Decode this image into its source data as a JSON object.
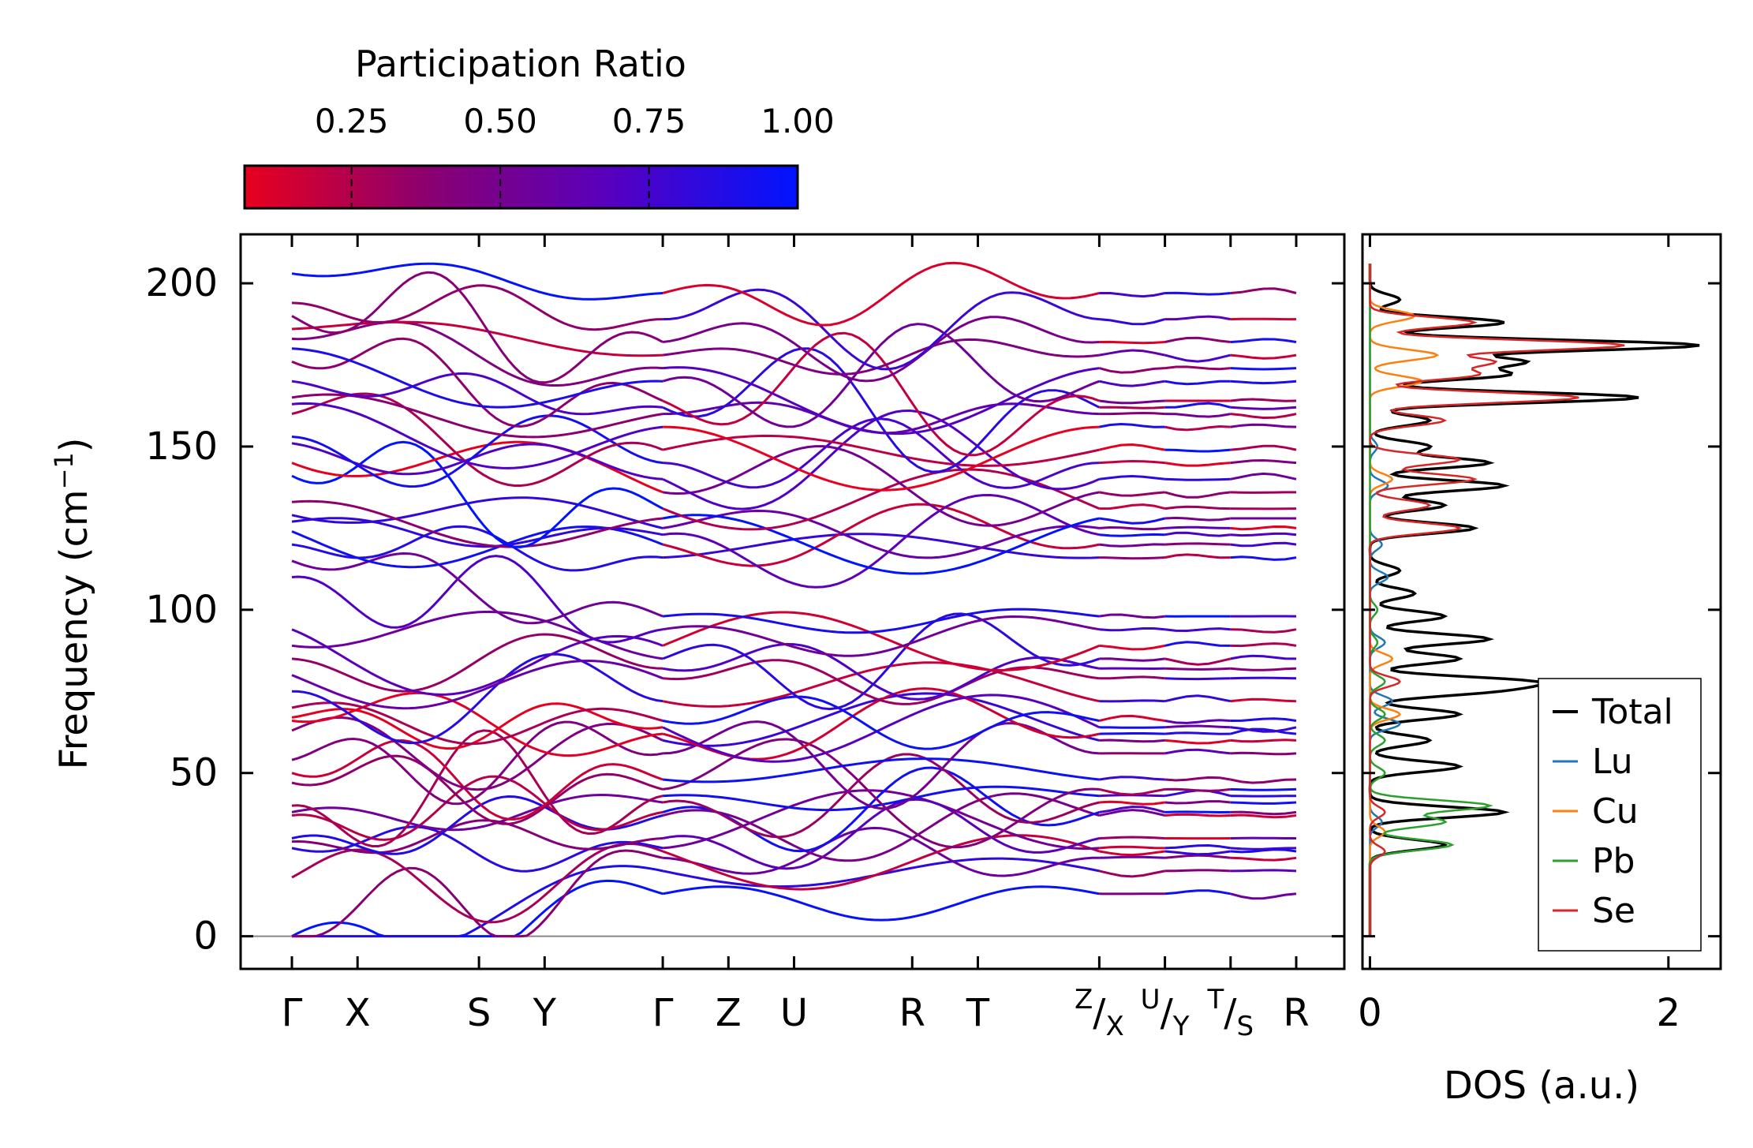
{
  "chart_data": {
    "type": "line",
    "colorbar": {
      "title": "Participation Ratio",
      "ticks": [
        "0.25",
        "0.50",
        "0.75",
        "1.00"
      ],
      "tick_values": [
        0.25,
        0.5,
        0.75,
        1.0
      ],
      "range": [
        0.07,
        1.0
      ],
      "colors": [
        "#e8001e",
        "#8a0070",
        "#5600c0",
        "#0014ff"
      ]
    },
    "bands": {
      "ylabel": "Frequency (cm",
      "ylabel_sup": "−1",
      "ylabel_end": ")",
      "ylim": [
        -10,
        215
      ],
      "yticks": [
        "0",
        "50",
        "100",
        "150",
        "200"
      ],
      "ytick_values": [
        0,
        50,
        100,
        150,
        200
      ],
      "kpoints": [
        {
          "label": "Γ"
        },
        {
          "label": "X"
        },
        {
          "label": "S"
        },
        {
          "label": "Y"
        },
        {
          "label": "Γ"
        },
        {
          "label": "Z"
        },
        {
          "label": "U"
        },
        {
          "label": "R"
        },
        {
          "label": "T"
        },
        {
          "label": "Z/X",
          "num": "Z",
          "den": "X"
        },
        {
          "label": "U/Y",
          "num": "U",
          "den": "Y"
        },
        {
          "label": "T/S",
          "num": "T",
          "den": "S"
        },
        {
          "label": "R"
        }
      ],
      "kpoint_positions": [
        0,
        0.2,
        0.57,
        0.77,
        1.13,
        1.33,
        1.53,
        1.89,
        2.09,
        2.46,
        2.66,
        2.86,
        3.06
      ],
      "segments": [
        [
          0,
          4
        ],
        [
          4,
          9
        ],
        [
          9,
          10
        ],
        [
          10,
          11
        ],
        [
          11,
          12
        ]
      ],
      "gamma_frequencies": [
        0,
        0,
        0,
        18,
        27,
        29,
        30,
        37,
        38,
        40,
        47,
        50,
        54,
        63,
        66,
        67,
        70,
        75,
        80,
        85,
        89,
        94,
        110,
        115,
        120,
        124,
        127,
        129,
        133,
        141,
        145,
        151,
        153,
        160,
        163,
        165,
        170,
        176,
        180,
        183,
        186,
        190,
        194,
        203
      ],
      "endpoint_frequencies": [
        13,
        20,
        24,
        26,
        27,
        30,
        37,
        38,
        41,
        43,
        45,
        48,
        56,
        60,
        62,
        64,
        66,
        72,
        79,
        82,
        85,
        89,
        94,
        98,
        116,
        120,
        123,
        125,
        128,
        131,
        136,
        140,
        145,
        149,
        156,
        160,
        162,
        164,
        170,
        174,
        178,
        182,
        189,
        197
      ]
    },
    "dos": {
      "xlabel": "DOS (a.u.)",
      "xlim": [
        -0.05,
        2.35
      ],
      "xticks": [
        "0",
        "2"
      ],
      "xtick_values": [
        0,
        2
      ],
      "series": [
        {
          "name": "Total",
          "color": "#000000"
        },
        {
          "name": "Lu",
          "color": "#1f77b4"
        },
        {
          "name": "Cu",
          "color": "#ff7f0e"
        },
        {
          "name": "Pb",
          "color": "#2ca02c"
        },
        {
          "name": "Se",
          "color": "#d62728"
        }
      ],
      "peaks": {
        "Total": [
          [
            28,
            0.5
          ],
          [
            38,
            0.9
          ],
          [
            52,
            0.6
          ],
          [
            60,
            0.4
          ],
          [
            68,
            0.6
          ],
          [
            75,
            0.7
          ],
          [
            78,
            1.0
          ],
          [
            85,
            0.6
          ],
          [
            91,
            0.8
          ],
          [
            98,
            0.5
          ],
          [
            105,
            0.3
          ],
          [
            112,
            0.2
          ],
          [
            125,
            0.7
          ],
          [
            132,
            0.5
          ],
          [
            138,
            0.9
          ],
          [
            145,
            0.8
          ],
          [
            150,
            0.4
          ],
          [
            158,
            0.4
          ],
          [
            165,
            1.8
          ],
          [
            172,
            0.9
          ],
          [
            176,
            1.0
          ],
          [
            181,
            2.2
          ],
          [
            188,
            0.9
          ],
          [
            195,
            0.2
          ]
        ],
        "Lu": [
          [
            35,
            0.08
          ],
          [
            65,
            0.2
          ],
          [
            72,
            0.15
          ],
          [
            90,
            0.1
          ],
          [
            110,
            0.12
          ],
          [
            120,
            0.08
          ],
          [
            138,
            0.12
          ],
          [
            150,
            0.05
          ]
        ],
        "Cu": [
          [
            32,
            0.1
          ],
          [
            68,
            0.2
          ],
          [
            85,
            0.15
          ],
          [
            140,
            0.15
          ],
          [
            170,
            0.35
          ],
          [
            178,
            0.45
          ],
          [
            190,
            0.3
          ]
        ],
        "Pb": [
          [
            28,
            0.55
          ],
          [
            35,
            0.5
          ],
          [
            40,
            0.8
          ],
          [
            50,
            0.1
          ],
          [
            60,
            0.1
          ],
          [
            68,
            0.1
          ],
          [
            78,
            0.1
          ],
          [
            90,
            0.05
          ],
          [
            100,
            0.05
          ]
        ],
        "Se": [
          [
            26,
            0.1
          ],
          [
            38,
            0.1
          ],
          [
            78,
            0.2
          ],
          [
            125,
            0.6
          ],
          [
            132,
            0.4
          ],
          [
            140,
            0.7
          ],
          [
            146,
            0.6
          ],
          [
            158,
            0.5
          ],
          [
            165,
            1.4
          ],
          [
            172,
            0.7
          ],
          [
            176,
            0.8
          ],
          [
            181,
            1.7
          ],
          [
            188,
            0.7
          ]
        ]
      }
    }
  }
}
